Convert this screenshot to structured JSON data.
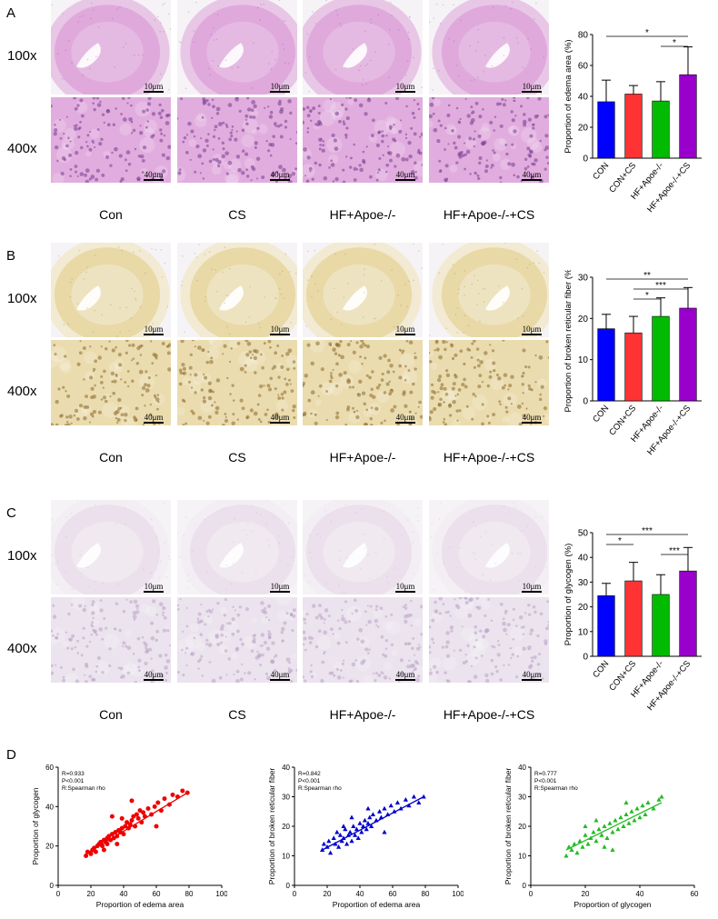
{
  "figure": {
    "panels": [
      {
        "letter": "A",
        "stain": "he",
        "mag_rows": [
          "100x",
          "400x"
        ],
        "groups": [
          "Con",
          "CS",
          "HF+Apoe-/-",
          "HF+Apoe-/-+CS"
        ],
        "scale_labels": [
          "10μm",
          "10μm",
          "10μm",
          "10μm",
          "40μm",
          "40μm",
          "40μm",
          "40μm"
        ],
        "colors": {
          "bg": "#e8c7e6",
          "tissue": "#d98fd4",
          "dot": "#7a3b8f"
        }
      },
      {
        "letter": "B",
        "stain": "reticular",
        "mag_rows": [
          "100x",
          "400x"
        ],
        "groups": [
          "Con",
          "CS",
          "HF+Apoe-/-",
          "HF+Apoe-/-+CS"
        ],
        "scale_labels": [
          "10μm",
          "10μm",
          "10μm",
          "10μm",
          "40μm",
          "40μm",
          "40μm",
          "40μm"
        ],
        "colors": {
          "bg": "#f2ead2",
          "tissue": "#e2cb84",
          "dot": "#8a6a2c"
        }
      },
      {
        "letter": "C",
        "stain": "pas",
        "mag_rows": [
          "100x",
          "400x"
        ],
        "groups": [
          "Con",
          "CS",
          "HF+Apoe-/-",
          "HF+Apoe-/-+CS"
        ],
        "scale_labels": [
          "10μm",
          "10μm",
          "10μm",
          "10μm",
          "40μm",
          "40μm",
          "40μm",
          "40μm"
        ],
        "colors": {
          "bg": "#f3eef4",
          "tissue": "#e3d5e6",
          "dot": "#b9a3c4"
        }
      }
    ],
    "panel_d_letter": "D"
  },
  "chart_data": [
    {
      "type": "bar",
      "panel": "A",
      "ylabel": "Proportion of edema area (%)",
      "categories": [
        "CON",
        "CON+CS",
        "HF+Apoe-/-",
        "HF+Apoe-/-+CS"
      ],
      "values": [
        36.5,
        41.5,
        37,
        54
      ],
      "errors": [
        14,
        5.5,
        12.5,
        18
      ],
      "colors": [
        "#0000ff",
        "#ff3333",
        "#00bb00",
        "#9900cc"
      ],
      "ylim": [
        0,
        80
      ],
      "yticks": [
        0,
        20,
        40,
        60,
        80
      ],
      "significance": [
        {
          "from": 0,
          "to": 3,
          "label": "*"
        },
        {
          "from": 2,
          "to": 3,
          "label": "*"
        }
      ]
    },
    {
      "type": "bar",
      "panel": "B",
      "ylabel": "Proportion of broken reticular fiber (%)",
      "categories": [
        "CON",
        "CON+CS",
        "HF+Apoe-/-",
        "HF+Apoe-/-+CS"
      ],
      "values": [
        17.5,
        16.5,
        20.5,
        22.5
      ],
      "errors": [
        3.5,
        4,
        4.5,
        5
      ],
      "colors": [
        "#0000ff",
        "#ff3333",
        "#00bb00",
        "#9900cc"
      ],
      "ylim": [
        0,
        30
      ],
      "yticks": [
        0,
        10,
        20,
        30
      ],
      "significance": [
        {
          "from": 0,
          "to": 3,
          "label": "**"
        },
        {
          "from": 1,
          "to": 3,
          "label": "***"
        },
        {
          "from": 1,
          "to": 2,
          "label": "*"
        }
      ]
    },
    {
      "type": "bar",
      "panel": "C",
      "ylabel": "Proportion of glycogen (%)",
      "categories": [
        "CON",
        "CON+CS",
        "HF+Apoe-/-",
        "HF+Apoe-/-+CS"
      ],
      "values": [
        24.5,
        30.5,
        25,
        34.5
      ],
      "errors": [
        5,
        7.5,
        8,
        9.5
      ],
      "colors": [
        "#0000ff",
        "#ff3333",
        "#00bb00",
        "#9900cc"
      ],
      "ylim": [
        0,
        50
      ],
      "yticks": [
        0,
        10,
        20,
        30,
        40,
        50
      ],
      "significance": [
        {
          "from": 0,
          "to": 3,
          "label": "***"
        },
        {
          "from": 0,
          "to": 1,
          "label": "*"
        },
        {
          "from": 2,
          "to": 3,
          "label": "***"
        }
      ]
    },
    {
      "type": "scatter",
      "panel": "D1",
      "xlabel": "Proportion of edema area",
      "ylabel": "Proportion of glycogen",
      "xlim": [
        0,
        100
      ],
      "ylim": [
        0,
        60
      ],
      "xticks": [
        0,
        20,
        40,
        60,
        80,
        100
      ],
      "yticks": [
        0,
        20,
        40,
        60
      ],
      "stats": [
        "R=0.933",
        "P<0.001",
        "R:Spearman rho"
      ],
      "marker": "circle",
      "color": "#ee0000",
      "fit": [
        [
          17,
          16
        ],
        [
          79,
          47
        ]
      ],
      "points": [
        [
          17,
          15
        ],
        [
          18,
          17
        ],
        [
          20,
          16
        ],
        [
          21,
          18
        ],
        [
          22,
          19
        ],
        [
          23,
          17
        ],
        [
          24,
          20
        ],
        [
          25,
          21
        ],
        [
          26,
          22
        ],
        [
          27,
          20
        ],
        [
          28,
          23
        ],
        [
          29,
          22
        ],
        [
          30,
          24
        ],
        [
          30,
          21
        ],
        [
          31,
          25
        ],
        [
          32,
          23
        ],
        [
          33,
          26
        ],
        [
          34,
          24
        ],
        [
          35,
          27
        ],
        [
          36,
          25
        ],
        [
          37,
          28
        ],
        [
          38,
          27
        ],
        [
          39,
          29
        ],
        [
          40,
          26
        ],
        [
          41,
          30
        ],
        [
          42,
          32
        ],
        [
          43,
          29
        ],
        [
          44,
          31
        ],
        [
          45,
          33
        ],
        [
          46,
          35
        ],
        [
          47,
          30
        ],
        [
          48,
          36
        ],
        [
          49,
          34
        ],
        [
          50,
          38
        ],
        [
          51,
          32
        ],
        [
          52,
          37
        ],
        [
          53,
          35
        ],
        [
          55,
          39
        ],
        [
          57,
          36
        ],
        [
          59,
          40
        ],
        [
          61,
          42
        ],
        [
          63,
          38
        ],
        [
          65,
          44
        ],
        [
          68,
          41
        ],
        [
          70,
          46
        ],
        [
          73,
          45
        ],
        [
          76,
          48
        ],
        [
          79,
          47
        ],
        [
          33,
          35
        ],
        [
          45,
          43
        ],
        [
          60,
          30
        ],
        [
          39,
          34
        ],
        [
          28,
          18
        ],
        [
          36,
          21
        ]
      ]
    },
    {
      "type": "scatter",
      "panel": "D2",
      "xlabel": "Proportion of edema area",
      "ylabel": "Proportion of broken reticular fiber",
      "xlim": [
        0,
        100
      ],
      "ylim": [
        0,
        40
      ],
      "xticks": [
        0,
        20,
        40,
        60,
        80,
        100
      ],
      "yticks": [
        0,
        10,
        20,
        30,
        40
      ],
      "stats": [
        "R=0.842",
        "P<0.001",
        "R:Spearman rho"
      ],
      "marker": "triangle",
      "color": "#0000cc",
      "fit": [
        [
          17,
          12
        ],
        [
          79,
          30
        ]
      ],
      "points": [
        [
          17,
          12
        ],
        [
          18,
          14
        ],
        [
          20,
          13
        ],
        [
          21,
          15
        ],
        [
          22,
          11
        ],
        [
          24,
          16
        ],
        [
          25,
          14
        ],
        [
          26,
          18
        ],
        [
          27,
          13
        ],
        [
          28,
          17
        ],
        [
          29,
          15
        ],
        [
          30,
          16
        ],
        [
          31,
          19
        ],
        [
          32,
          14
        ],
        [
          33,
          17
        ],
        [
          34,
          18
        ],
        [
          35,
          15
        ],
        [
          36,
          20
        ],
        [
          37,
          17
        ],
        [
          38,
          19
        ],
        [
          39,
          16
        ],
        [
          40,
          21
        ],
        [
          41,
          18
        ],
        [
          42,
          20
        ],
        [
          43,
          22
        ],
        [
          44,
          19
        ],
        [
          45,
          21
        ],
        [
          46,
          23
        ],
        [
          47,
          20
        ],
        [
          48,
          24
        ],
        [
          50,
          22
        ],
        [
          52,
          25
        ],
        [
          53,
          23
        ],
        [
          55,
          26
        ],
        [
          57,
          24
        ],
        [
          59,
          27
        ],
        [
          61,
          25
        ],
        [
          63,
          28
        ],
        [
          65,
          26
        ],
        [
          68,
          29
        ],
        [
          70,
          27
        ],
        [
          73,
          30
        ],
        [
          76,
          28
        ],
        [
          79,
          30
        ],
        [
          35,
          23
        ],
        [
          45,
          26
        ],
        [
          55,
          18
        ],
        [
          30,
          20
        ]
      ]
    },
    {
      "type": "scatter",
      "panel": "D3",
      "xlabel": "Proportion of glycogen",
      "ylabel": "Proportion of broken reticular fiber",
      "xlim": [
        0,
        60
      ],
      "ylim": [
        0,
        40
      ],
      "xticks": [
        0,
        20,
        40,
        60
      ],
      "yticks": [
        0,
        10,
        20,
        30,
        40
      ],
      "stats": [
        "R=0.777",
        "P<0.001",
        "R:Spearman rho"
      ],
      "marker": "triangle",
      "color": "#22bb22",
      "fit": [
        [
          13,
          12
        ],
        [
          48,
          28
        ]
      ],
      "points": [
        [
          13,
          10
        ],
        [
          14,
          13
        ],
        [
          15,
          12
        ],
        [
          16,
          14
        ],
        [
          17,
          11
        ],
        [
          18,
          15
        ],
        [
          19,
          13
        ],
        [
          20,
          17
        ],
        [
          21,
          14
        ],
        [
          22,
          16
        ],
        [
          23,
          18
        ],
        [
          24,
          15
        ],
        [
          25,
          19
        ],
        [
          26,
          17
        ],
        [
          27,
          20
        ],
        [
          28,
          16
        ],
        [
          29,
          21
        ],
        [
          30,
          18
        ],
        [
          31,
          22
        ],
        [
          32,
          19
        ],
        [
          33,
          23
        ],
        [
          34,
          20
        ],
        [
          35,
          24
        ],
        [
          36,
          21
        ],
        [
          37,
          25
        ],
        [
          38,
          22
        ],
        [
          39,
          26
        ],
        [
          40,
          23
        ],
        [
          41,
          27
        ],
        [
          42,
          24
        ],
        [
          43,
          28
        ],
        [
          45,
          26
        ],
        [
          47,
          29
        ],
        [
          48,
          30
        ],
        [
          24,
          22
        ],
        [
          30,
          12
        ],
        [
          35,
          28
        ],
        [
          20,
          20
        ],
        [
          27,
          13
        ]
      ]
    }
  ]
}
